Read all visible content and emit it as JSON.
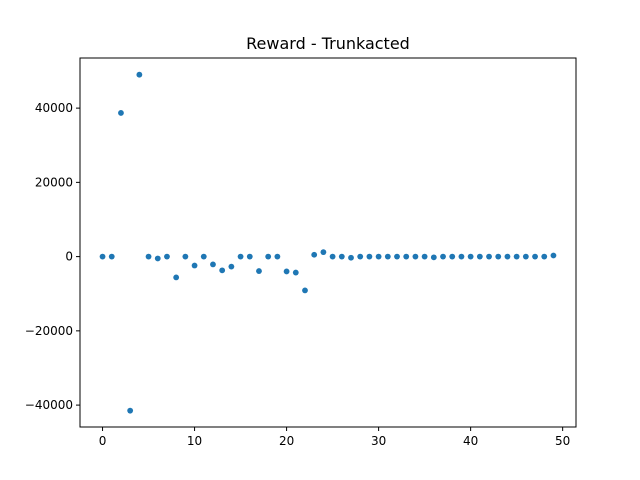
{
  "chart_data": {
    "type": "scatter",
    "title": "Reward - Trunkacted",
    "xlabel": "",
    "ylabel": "",
    "xlim": [
      -2.45,
      51.45
    ],
    "ylim": [
      -45900,
      53500
    ],
    "x_ticks": [
      0,
      10,
      20,
      30,
      40,
      50
    ],
    "y_ticks": [
      -40000,
      -20000,
      0,
      20000,
      40000
    ],
    "grid": false,
    "color": "#1f77b4",
    "series": [
      {
        "x": [
          0,
          1,
          2,
          3,
          4,
          5,
          6,
          7,
          8,
          9,
          10,
          11,
          12,
          13,
          14,
          15,
          16,
          17,
          18,
          19,
          20,
          21,
          22,
          23,
          24,
          25,
          26,
          27,
          28,
          29,
          30,
          31,
          32,
          33,
          34,
          35,
          36,
          37,
          38,
          39,
          40,
          41,
          42,
          43,
          44,
          45,
          46,
          47,
          48,
          49
        ],
        "y": [
          0,
          0,
          38700,
          -41500,
          49000,
          0,
          -500,
          0,
          -5600,
          0,
          -2400,
          0,
          -2100,
          -3700,
          -2700,
          0,
          0,
          -3900,
          0,
          0,
          -4000,
          -4300,
          -9100,
          500,
          1200,
          0,
          0,
          -300,
          0,
          0,
          0,
          0,
          0,
          0,
          0,
          0,
          -200,
          0,
          0,
          0,
          0,
          0,
          0,
          0,
          0,
          0,
          0,
          0,
          0,
          300
        ]
      }
    ]
  }
}
